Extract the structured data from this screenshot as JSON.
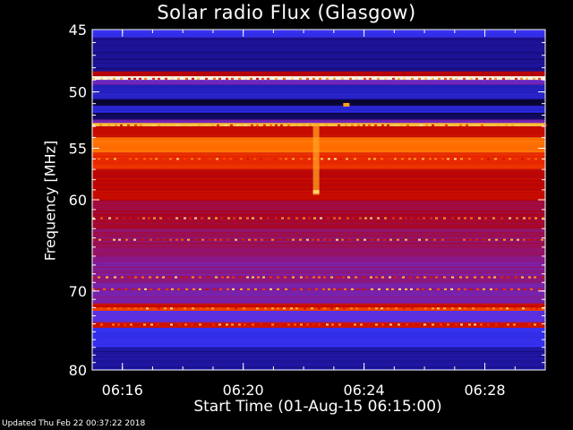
{
  "chart_data": {
    "type": "heatmap",
    "title": "Solar radio Flux (Glasgow)",
    "xlabel": "Start Time (01-Aug-15 06:15:00)",
    "ylabel": "Frequency [MHz]",
    "x_ticks": [
      "06:16",
      "06:20",
      "06:24",
      "06:28"
    ],
    "x_tick_minutes": [
      1,
      5,
      9,
      13
    ],
    "x_range_minutes": [
      0,
      15
    ],
    "y_ticks": [
      45,
      50,
      55,
      60,
      70,
      80
    ],
    "y_range_mhz": [
      45,
      80
    ],
    "y_scale": "log",
    "bands": [
      {
        "from": 45.0,
        "to": 45.6,
        "level": 0.25
      },
      {
        "from": 45.6,
        "to": 48.3,
        "level": 0.12
      },
      {
        "from": 48.3,
        "to": 48.7,
        "level": 0.55
      },
      {
        "from": 48.7,
        "to": 49.0,
        "level": 0.98
      },
      {
        "from": 49.0,
        "to": 49.4,
        "level": 0.4
      },
      {
        "from": 49.4,
        "to": 50.6,
        "level": 0.18
      },
      {
        "from": 50.6,
        "to": 51.2,
        "level": 0.05
      },
      {
        "from": 51.2,
        "to": 51.8,
        "level": 0.2
      },
      {
        "from": 51.8,
        "to": 52.4,
        "level": 0.08
      },
      {
        "from": 52.4,
        "to": 52.7,
        "level": 0.4
      },
      {
        "from": 52.7,
        "to": 53.0,
        "level": 0.9
      },
      {
        "from": 53.0,
        "to": 54.0,
        "level": 0.6
      },
      {
        "from": 54.0,
        "to": 55.4,
        "level": 0.78
      },
      {
        "from": 55.4,
        "to": 57.0,
        "level": 0.68
      },
      {
        "from": 57.0,
        "to": 60.0,
        "level": 0.58
      },
      {
        "from": 60.0,
        "to": 63.0,
        "level": 0.52
      },
      {
        "from": 63.0,
        "to": 66.0,
        "level": 0.48
      },
      {
        "from": 66.0,
        "to": 69.0,
        "level": 0.44
      },
      {
        "from": 69.0,
        "to": 71.5,
        "level": 0.42
      },
      {
        "from": 71.5,
        "to": 72.0,
        "level": 0.6
      },
      {
        "from": 72.0,
        "to": 72.4,
        "level": 0.72
      },
      {
        "from": 72.4,
        "to": 73.8,
        "level": 0.35
      },
      {
        "from": 73.8,
        "to": 74.5,
        "level": 0.62
      },
      {
        "from": 74.5,
        "to": 77.0,
        "level": 0.25
      },
      {
        "from": 77.0,
        "to": 80.0,
        "level": 0.14
      }
    ],
    "hot_lines_mhz": [
      48.9,
      52.9,
      56.0,
      61.9,
      64.2,
      68.4,
      69.8,
      72.1,
      74.1
    ],
    "burst": {
      "minute": 7.4,
      "from_mhz": 52.8,
      "to_mhz": 59.5,
      "level": 0.85
    },
    "spots": [
      {
        "minute": 7.4,
        "mhz": 59.2,
        "level": 0.92
      },
      {
        "minute": 8.4,
        "mhz": 51.1,
        "level": 0.85
      }
    ],
    "colormap": [
      "#000000",
      "#1a0f8a",
      "#2d2de6",
      "#4a39ff",
      "#8a1a8c",
      "#b30000",
      "#e62200",
      "#ff6a00",
      "#ffc033",
      "#ffffff"
    ]
  },
  "footer": "Updated Thu Feb 22 00:37:22 2018"
}
